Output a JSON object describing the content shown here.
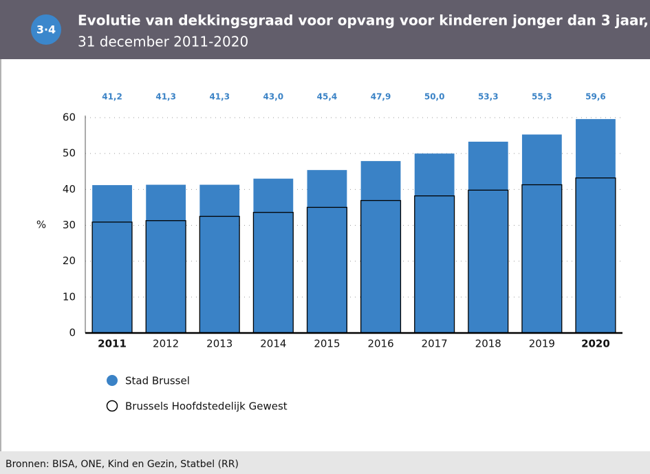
{
  "badge": "3·4",
  "chart_data": {
    "type": "bar",
    "title": "Evolutie van dekkingsgraad voor opvang voor kinderen jonger dan 3 jaar,",
    "subtitle": "31 december 2011-2020",
    "y_label": "%",
    "categories": [
      "2011",
      "2012",
      "2013",
      "2014",
      "2015",
      "2016",
      "2017",
      "2018",
      "2019",
      "2020"
    ],
    "series": [
      {
        "name": "Stad Brussel",
        "color": "#3a82c6",
        "values": [
          41.2,
          41.3,
          41.3,
          43.0,
          45.4,
          47.9,
          50.0,
          53.3,
          55.3,
          59.6
        ],
        "value_labels": [
          "41,2",
          "41,3",
          "41,3",
          "43,0",
          "45,4",
          "47,9",
          "50,0",
          "53,3",
          "55,3",
          "59,6"
        ]
      },
      {
        "name": "Brussels Hoofdstedelijk Gewest",
        "color": "#000000",
        "values": [
          30.9,
          31.3,
          32.5,
          33.6,
          35.0,
          36.9,
          38.2,
          39.8,
          41.3,
          43.2
        ]
      }
    ],
    "ylim": [
      0,
      60
    ],
    "yticks": [
      0,
      10,
      20,
      30,
      40,
      50,
      60
    ],
    "grid": true
  },
  "source": "Bronnen: BISA, ONE, Kind en Gezin, Statbel (RR)"
}
